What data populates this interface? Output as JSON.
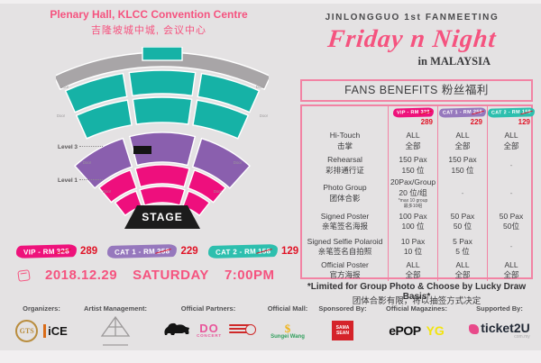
{
  "colors": {
    "title_pink": "#f5537f",
    "badge_vip": "#ee127b",
    "badge_cat1": "#9678bd",
    "badge_cat2": "#2dbfae",
    "price_red": "#e01326",
    "seat_teal": "#16b2a6",
    "seat_purple": "#8a5fae",
    "seat_pink": "#ee0f7d",
    "table_border": "#f283a4"
  },
  "venue": {
    "line1": "Plenary Hall, KLCC Convention Centre",
    "line2": "吉隆坡城中城,  会议中心"
  },
  "event": {
    "kicker": "JINLONGGUO 1st FANMEETING",
    "title": "Friday n Night",
    "subtitle": "in MALAYSIA"
  },
  "seatmap": {
    "level3_label": "Level 3",
    "level1_label": "Level 1",
    "stage_label": "STAGE",
    "door_label": "Door"
  },
  "tickets": [
    {
      "label": "VIP - RM",
      "old_price": "328",
      "price": "289"
    },
    {
      "label": "CAT 1 - RM",
      "old_price": "258",
      "price": "229"
    },
    {
      "label": "CAT 2 - RM",
      "old_price": "158",
      "price": "129"
    }
  ],
  "datetime": {
    "date": "2018.12.29",
    "day": "SATURDAY",
    "time": "7:00PM"
  },
  "benefits": {
    "title": "FANS BENEFITS 粉丝福利",
    "rows": [
      {
        "en": "Hi-Touch",
        "zh": "击掌",
        "v1a": "ALL",
        "v1b": "全部",
        "v2a": "ALL",
        "v2b": "全部",
        "v3a": "ALL",
        "v3b": "全部"
      },
      {
        "en": "Rehearsal",
        "zh": "彩排通行证",
        "v1a": "150 Pax",
        "v1b": "150 位",
        "v2a": "150 Pax",
        "v2b": "150 位",
        "v3a": "-",
        "v3b": ""
      },
      {
        "en": "Photo Group",
        "zh": "团体合影",
        "v1a": "20Pax/Group",
        "v1b": "20 位/组",
        "v1c": "*max 10 group",
        "v1d": "最多10组",
        "v2a": "-",
        "v2b": "",
        "v3a": "-",
        "v3b": ""
      },
      {
        "en": "Signed Poster",
        "zh": "亲笔签名海报",
        "v1a": "100 Pax",
        "v1b": "100 位",
        "v2a": "50 Pax",
        "v2b": "50 位",
        "v3a": "50 Pax",
        "v3b": "50位"
      },
      {
        "en": "Signed Selfie Polaroid",
        "zh": "亲笔签名自拍照",
        "v1a": "10 Pax",
        "v1b": "10 位",
        "v2a": "5 Pax",
        "v2b": "5 位",
        "v3a": "-",
        "v3b": ""
      },
      {
        "en": "Official Poster",
        "zh": "官方海报",
        "v1a": "ALL",
        "v1b": "全部",
        "v2a": "ALL",
        "v2b": "全部",
        "v3a": "ALL",
        "v3b": "全部"
      }
    ],
    "note1": "*Limited for Group Photo & Choose by Lucky Draw Basis*",
    "note2": "团体合影有限，将以抽签方式决定"
  },
  "footer": {
    "organizers_label": "Organizers:",
    "artist_label": "Artist Management:",
    "partners_label": "Official Partners:",
    "mall_label": "Official Mall:",
    "sponsor_label": "Sponsored By:",
    "magazines_label": "Official Magazines:",
    "supported_label": "Supported By:",
    "gts": "GTS",
    "ice": "iCE",
    "do_line1": "DO",
    "do_line2": "CONCERT",
    "sw_symbol": "$",
    "sw_name": "Sungei Wang",
    "sama": "SAMA SEAN",
    "epop": "ePOP",
    "yg": "YG",
    "t2u": "ticket2U",
    "t2u_suffix": "com.my"
  }
}
